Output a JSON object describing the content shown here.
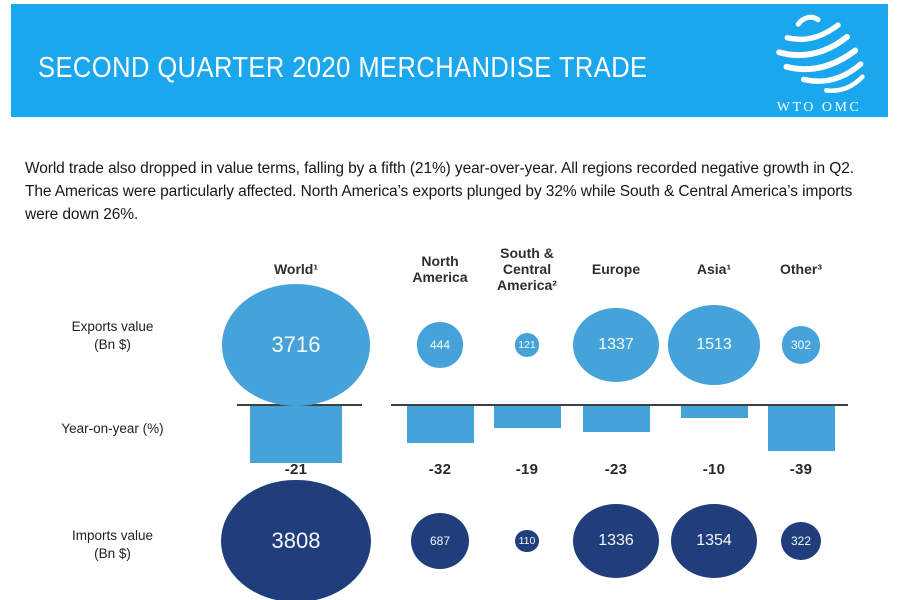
{
  "header": {
    "title": "SECOND QUARTER 2020 MERCHANDISE TRADE",
    "logo_caption": "WTO OMC",
    "banner_color": "#1BA7EE"
  },
  "intro_text": "World trade also dropped in value terms, falling by a fifth (21%) year-over-year. All regions recorded negative growth in Q2. The Americas were particularly affected. North America’s exports plunged by 32% while South & Central America’s imports were down 26%.",
  "chart_data": {
    "type": "table",
    "title": "Second quarter 2020 merchandise trade by region",
    "categories": [
      "World¹",
      "North\nAmerica",
      "South &\nCentral\nAmerica²",
      "Europe",
      "Asia¹",
      "Other³"
    ],
    "rows": [
      {
        "label": "Exports value\n(Bn $)",
        "kind": "bubble",
        "color": "#45A3DA",
        "values": [
          3716,
          444,
          121,
          1337,
          1513,
          302
        ]
      },
      {
        "label": "Year-on-year (%)",
        "kind": "bar",
        "color": "#45A3DA",
        "values": [
          -21,
          -32,
          -19,
          -23,
          -10,
          -39
        ]
      },
      {
        "label": "Imports value\n(Bn $)",
        "kind": "bubble",
        "color": "#203D7C",
        "values": [
          3808,
          687,
          110,
          1336,
          1354,
          322
        ]
      }
    ],
    "layout_hints": {
      "grid": "off",
      "legend": "none",
      "world_column_own_scale": true
    }
  }
}
